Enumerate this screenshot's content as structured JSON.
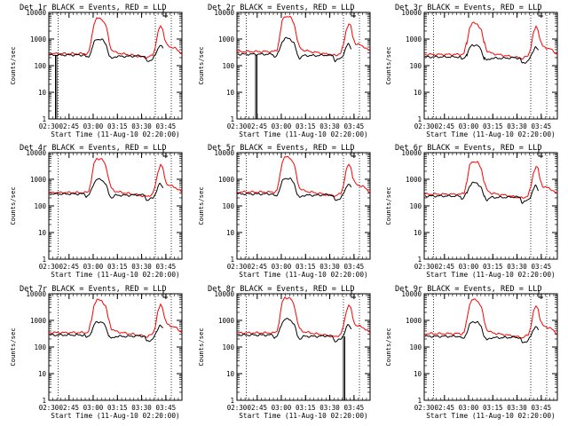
{
  "chart_data": [
    {
      "type": "line",
      "title": "Det 1r BLACK = Events, RED = LLD",
      "xlabel": "Start Time (11-Aug-10 02:20:00)",
      "ylabel": "Counts/sec",
      "x_tick_labels": [
        "02:30",
        "02:45",
        "03:00",
        "03:15",
        "03:30",
        "03:45"
      ],
      "y_tick_labels": [
        "1",
        "10",
        "100",
        "1000",
        "10000"
      ],
      "ylim": [
        1,
        10000
      ],
      "series": [
        {
          "name": "Events",
          "color": "#000000",
          "variant": 1
        },
        {
          "name": "LLD",
          "color": "#ff0000",
          "variant": 1
        }
      ],
      "annotation": "dropout near 02:30"
    },
    {
      "type": "line",
      "title": "Det 2r BLACK = Events, RED = LLD",
      "xlabel": "Start Time (11-Aug-10 02:20:00)",
      "ylabel": "Counts/sec",
      "x_tick_labels": [
        "02:30",
        "02:45",
        "03:00",
        "03:15",
        "03:30",
        "03:45"
      ],
      "y_tick_labels": [
        "1",
        "10",
        "100",
        "1000",
        "10000"
      ],
      "ylim": [
        1,
        10000
      ],
      "series": [
        {
          "name": "Events",
          "color": "#000000",
          "variant": 2
        },
        {
          "name": "LLD",
          "color": "#ff0000",
          "variant": 2
        }
      ],
      "annotation": "dropout near 02:33"
    },
    {
      "type": "line",
      "title": "Det 3r BLACK = Events, RED = LLD",
      "xlabel": "Start Time (11-Aug-10 02:20:00)",
      "ylabel": "Counts/sec",
      "x_tick_labels": [
        "02:30",
        "02:45",
        "03:00",
        "03:15",
        "03:30",
        "03:45"
      ],
      "y_tick_labels": [
        "1",
        "10",
        "100",
        "1000",
        "10000"
      ],
      "ylim": [
        1,
        10000
      ],
      "series": [
        {
          "name": "Events",
          "color": "#000000",
          "variant": 3
        },
        {
          "name": "LLD",
          "color": "#ff0000",
          "variant": 3
        }
      ]
    },
    {
      "type": "line",
      "title": "Det 4r BLACK = Events, RED = LLD",
      "xlabel": "Start Time (11-Aug-10 02:20:00)",
      "ylabel": "Counts/sec",
      "x_tick_labels": [
        "02:30",
        "02:45",
        "03:00",
        "03:15",
        "03:30",
        "03:45"
      ],
      "y_tick_labels": [
        "1",
        "10",
        "100",
        "1000",
        "10000"
      ],
      "ylim": [
        1,
        10000
      ],
      "series": [
        {
          "name": "Events",
          "color": "#000000",
          "variant": 4
        },
        {
          "name": "LLD",
          "color": "#ff0000",
          "variant": 4
        }
      ]
    },
    {
      "type": "line",
      "title": "Det 5r BLACK = Events, RED = LLD",
      "xlabel": "Start Time (11-Aug-10 02:20:00)",
      "ylabel": "Counts/sec",
      "x_tick_labels": [
        "02:30",
        "02:45",
        "03:00",
        "03:15",
        "03:30",
        "03:45"
      ],
      "y_tick_labels": [
        "1",
        "10",
        "100",
        "1000",
        "10000"
      ],
      "ylim": [
        1,
        10000
      ],
      "series": [
        {
          "name": "Events",
          "color": "#000000",
          "variant": 5
        },
        {
          "name": "LLD",
          "color": "#ff0000",
          "variant": 5
        }
      ]
    },
    {
      "type": "line",
      "title": "Det 6r BLACK = Events, RED = LLD",
      "xlabel": "Start Time (11-Aug-10 02:20:00)",
      "ylabel": "Counts/sec",
      "x_tick_labels": [
        "02:30",
        "02:45",
        "03:00",
        "03:15",
        "03:30",
        "03:45"
      ],
      "y_tick_labels": [
        "1",
        "10",
        "100",
        "1000",
        "10000"
      ],
      "ylim": [
        1,
        10000
      ],
      "series": [
        {
          "name": "Events",
          "color": "#000000",
          "variant": 6
        },
        {
          "name": "LLD",
          "color": "#ff0000",
          "variant": 6
        }
      ]
    },
    {
      "type": "line",
      "title": "Det 7r BLACK = Events, RED = LLD",
      "xlabel": "Start Time (11-Aug-10 02:20:00)",
      "ylabel": "Counts/sec",
      "x_tick_labels": [
        "02:30",
        "02:45",
        "03:00",
        "03:15",
        "03:30",
        "03:45"
      ],
      "y_tick_labels": [
        "1",
        "10",
        "100",
        "1000",
        "10000"
      ],
      "ylim": [
        1,
        10000
      ],
      "series": [
        {
          "name": "Events",
          "color": "#000000",
          "variant": 7
        },
        {
          "name": "LLD",
          "color": "#ff0000",
          "variant": 7
        }
      ]
    },
    {
      "type": "line",
      "title": "Det 8r BLACK = Events, RED = LLD",
      "xlabel": "Start Time (11-Aug-10 02:20:00)",
      "ylabel": "Counts/sec",
      "x_tick_labels": [
        "02:30",
        "02:45",
        "03:00",
        "03:15",
        "03:30",
        "03:45"
      ],
      "y_tick_labels": [
        "1",
        "10",
        "100",
        "1000",
        "10000"
      ],
      "ylim": [
        1,
        10000
      ],
      "series": [
        {
          "name": "Events",
          "color": "#000000",
          "variant": 8
        },
        {
          "name": "LLD",
          "color": "#ff0000",
          "variant": 8
        }
      ],
      "annotation": "dropout near 03:37"
    },
    {
      "type": "line",
      "title": "Det 9r BLACK = Events, RED = LLD",
      "xlabel": "Start Time (11-Aug-10 02:20:00)",
      "ylabel": "Counts/sec",
      "x_tick_labels": [
        "02:30",
        "02:45",
        "03:00",
        "03:15",
        "03:30",
        "03:45"
      ],
      "y_tick_labels": [
        "1",
        "10",
        "100",
        "1000",
        "10000"
      ],
      "ylim": [
        1,
        10000
      ],
      "series": [
        {
          "name": "Events",
          "color": "#000000",
          "variant": 9
        },
        {
          "name": "LLD",
          "color": "#ff0000",
          "variant": 9
        }
      ]
    }
  ]
}
